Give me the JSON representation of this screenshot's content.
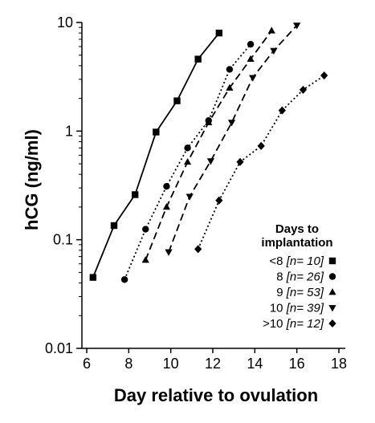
{
  "chart_data": {
    "type": "line",
    "title": "",
    "xlabel": "Day relative to ovulation",
    "ylabel": "hCG (ng/ml)",
    "xlim": [
      6,
      18
    ],
    "ylim": [
      0.01,
      10
    ],
    "yscale": "log",
    "xticks": [
      "6",
      "8",
      "10",
      "12",
      "14",
      "16",
      "18"
    ],
    "yticks": [
      "0.01",
      "0.1",
      "1",
      "10"
    ],
    "grid": false,
    "legend": {
      "title_line1": "Days to",
      "title_line2": "implantation",
      "placement": "bottom-right"
    },
    "series": [
      {
        "name": "<8",
        "n_label": "[n= 10]",
        "marker": "square",
        "line": "solid",
        "points": [
          [
            6.3,
            0.045
          ],
          [
            7.3,
            0.135
          ],
          [
            8.3,
            0.26
          ],
          [
            9.3,
            0.98
          ],
          [
            10.3,
            1.9
          ],
          [
            11.3,
            4.6
          ],
          [
            12.3,
            8.0
          ]
        ]
      },
      {
        "name": "8",
        "n_label": "[n= 26]",
        "marker": "circle",
        "line": "dotted",
        "points": [
          [
            7.8,
            0.043
          ],
          [
            8.8,
            0.125
          ],
          [
            9.8,
            0.31
          ],
          [
            10.8,
            0.7
          ],
          [
            11.8,
            1.25
          ],
          [
            12.8,
            3.7
          ],
          [
            13.8,
            6.3
          ]
        ]
      },
      {
        "name": "9",
        "n_label": "[n= 53]",
        "marker": "triangle-up",
        "line": "dashed",
        "points": [
          [
            8.8,
            0.065
          ],
          [
            9.8,
            0.2
          ],
          [
            10.8,
            0.52
          ],
          [
            11.8,
            1.2
          ],
          [
            12.8,
            2.5
          ],
          [
            13.8,
            4.6
          ],
          [
            14.8,
            8.4
          ]
        ]
      },
      {
        "name": "10",
        "n_label": "[n= 39]",
        "marker": "triangle-down",
        "line": "dashed",
        "points": [
          [
            9.9,
            0.077
          ],
          [
            10.9,
            0.25
          ],
          [
            11.9,
            0.53
          ],
          [
            12.9,
            1.2
          ],
          [
            13.9,
            3.1
          ],
          [
            14.9,
            5.5
          ],
          [
            16.0,
            9.4
          ]
        ]
      },
      {
        "name": ">10",
        "n_label": "[n= 12]",
        "marker": "diamond",
        "line": "dotted",
        "points": [
          [
            11.3,
            0.082
          ],
          [
            12.3,
            0.23
          ],
          [
            13.3,
            0.52
          ],
          [
            14.3,
            0.73
          ],
          [
            15.3,
            1.55
          ],
          [
            16.3,
            2.4
          ],
          [
            17.3,
            3.25
          ]
        ]
      }
    ]
  }
}
